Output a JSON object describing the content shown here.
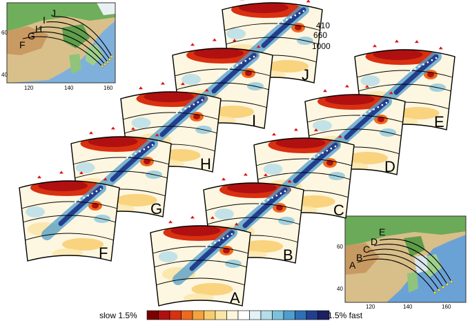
{
  "panels": [
    {
      "id": "J",
      "label": "J"
    },
    {
      "id": "I",
      "label": "I"
    },
    {
      "id": "H",
      "label": "H"
    },
    {
      "id": "G",
      "label": "G"
    },
    {
      "id": "F",
      "label": "F"
    },
    {
      "id": "E",
      "label": "E"
    },
    {
      "id": "D",
      "label": "D"
    },
    {
      "id": "C",
      "label": "C"
    },
    {
      "id": "B",
      "label": "B"
    },
    {
      "id": "A",
      "label": "A"
    }
  ],
  "depth_labels": [
    "410",
    "660",
    "1000"
  ],
  "map_north": {
    "profile_letters": [
      "F",
      "G",
      "H",
      "I",
      "J"
    ],
    "lat_ticks": [
      "60",
      "40"
    ],
    "lon_ticks": [
      "120",
      "140",
      "160"
    ]
  },
  "map_south": {
    "profile_letters": [
      "A",
      "B",
      "C",
      "D",
      "E"
    ],
    "lat_ticks": [
      "60",
      "40"
    ],
    "lon_ticks": [
      "120",
      "140",
      "160"
    ]
  },
  "colorbar": {
    "left_label": "slow 1.5%",
    "right_label": "1.5% fast",
    "colors": [
      "#7a0000",
      "#b01010",
      "#d83010",
      "#ee6a1e",
      "#f4a23c",
      "#f8cc6c",
      "#fbe6a8",
      "#fdf6dc",
      "#ffffff",
      "#e2f2f6",
      "#b4dde8",
      "#7cc2dc",
      "#4f9ecd",
      "#2f6fb3",
      "#223f8e",
      "#1a2060"
    ]
  }
}
